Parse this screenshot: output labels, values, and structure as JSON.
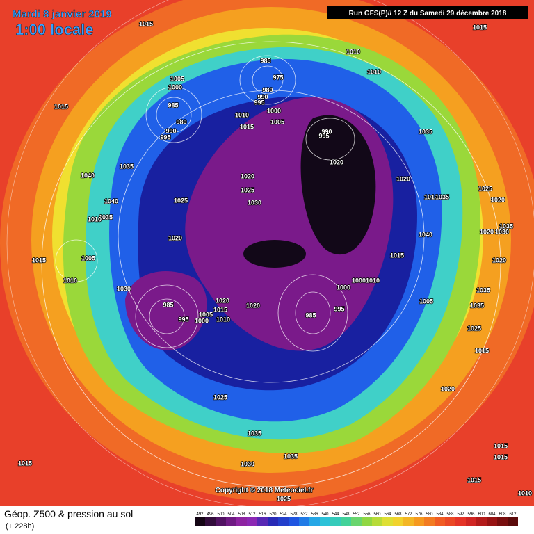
{
  "header": {
    "date": "Mardi 8 janvier 2019",
    "time": "1:00 locale",
    "run": "Run GFS(P)// 12 Z du Samedi 29 décembre 2018"
  },
  "pressure_labels": [
    1015,
    1015,
    1010,
    1010,
    985,
    975,
    980,
    990,
    995,
    1005,
    1000,
    985,
    980,
    990,
    995,
    1010,
    1000,
    1005,
    1015,
    1015,
    990,
    995,
    1020,
    1035,
    1035,
    1040,
    1020,
    1025,
    1030,
    1025,
    1020,
    1010,
    1035,
    1025,
    1020,
    1040,
    1035,
    1010,
    1020,
    1040,
    1020,
    1030,
    1035,
    1015,
    1005,
    1015,
    1020,
    1010,
    1030,
    1000,
    1000,
    1010,
    1035,
    1035,
    985,
    1020,
    1015,
    1010,
    1005,
    1000,
    995,
    1020,
    985,
    995,
    1005,
    1025,
    1015,
    1020,
    1025,
    1035,
    1035,
    1030,
    1015,
    1015,
    1015,
    1015,
    1010,
    1025
  ],
  "copyright": "Copyright © 2018 Meteociel.fr",
  "footer": {
    "title": "Géop. Z500 & pression au sol",
    "lead": "(+ 228h)"
  },
  "color_scale": [
    492,
    496,
    500,
    504,
    508,
    512,
    516,
    520,
    524,
    528,
    532,
    536,
    540,
    544,
    548,
    552,
    556,
    560,
    564,
    568,
    572,
    576,
    580,
    584,
    588,
    592,
    596,
    600,
    604,
    608,
    612
  ]
}
